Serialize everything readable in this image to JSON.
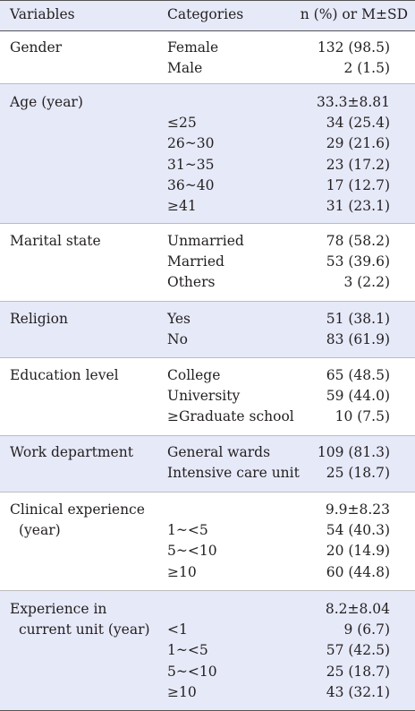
{
  "header": {
    "variables": "Variables",
    "categories": "Categories",
    "value": "n (%) or M±SD"
  },
  "groups": [
    {
      "variable": [
        "Gender"
      ],
      "rows": [
        {
          "category": "Female",
          "value": "132 (98.5)"
        },
        {
          "category": "Male",
          "value": "2 (1.5)"
        }
      ]
    },
    {
      "variable": [
        "Age (year)"
      ],
      "rows": [
        {
          "category": "",
          "value": "33.3±8.81"
        },
        {
          "category": "≤25",
          "value": "34 (25.4)"
        },
        {
          "category": "26~30",
          "value": "29 (21.6)"
        },
        {
          "category": "31~35",
          "value": "23 (17.2)"
        },
        {
          "category": "36~40",
          "value": "17 (12.7)"
        },
        {
          "category": "≥41",
          "value": "31 (23.1)"
        }
      ]
    },
    {
      "variable": [
        "Marital state"
      ],
      "rows": [
        {
          "category": "Unmarried",
          "value": "78 (58.2)"
        },
        {
          "category": "Married",
          "value": "53 (39.6)"
        },
        {
          "category": "Others",
          "value": "3 (2.2)"
        }
      ]
    },
    {
      "variable": [
        "Religion"
      ],
      "rows": [
        {
          "category": "Yes",
          "value": "51 (38.1)"
        },
        {
          "category": "No",
          "value": "83 (61.9)"
        }
      ]
    },
    {
      "variable": [
        "Education level"
      ],
      "rows": [
        {
          "category": "College",
          "value": "65 (48.5)"
        },
        {
          "category": "University",
          "value": "59 (44.0)"
        },
        {
          "category": "≥Graduate school",
          "value": "10 (7.5)"
        }
      ]
    },
    {
      "variable": [
        "Work department"
      ],
      "rows": [
        {
          "category": "General wards",
          "value": "109 (81.3)"
        },
        {
          "category": "Intensive care unit",
          "value": "25 (18.7)"
        }
      ]
    },
    {
      "variable": [
        "Clinical experience",
        "(year)"
      ],
      "rows": [
        {
          "category": "",
          "value": "9.9±8.23"
        },
        {
          "category": "1~<5",
          "value": "54 (40.3)"
        },
        {
          "category": "5~<10",
          "value": "20 (14.9)"
        },
        {
          "category": "≥10",
          "value": "60 (44.8)"
        }
      ]
    },
    {
      "variable": [
        "Experience in",
        "current unit (year)"
      ],
      "rows": [
        {
          "category": "",
          "value": "8.2±8.04"
        },
        {
          "category": "<1",
          "value": "9 (6.7)"
        },
        {
          "category": "1~<5",
          "value": "57 (42.5)"
        },
        {
          "category": "5~<10",
          "value": "25 (18.7)"
        },
        {
          "category": "≥10",
          "value": "43 (32.1)"
        }
      ]
    }
  ]
}
